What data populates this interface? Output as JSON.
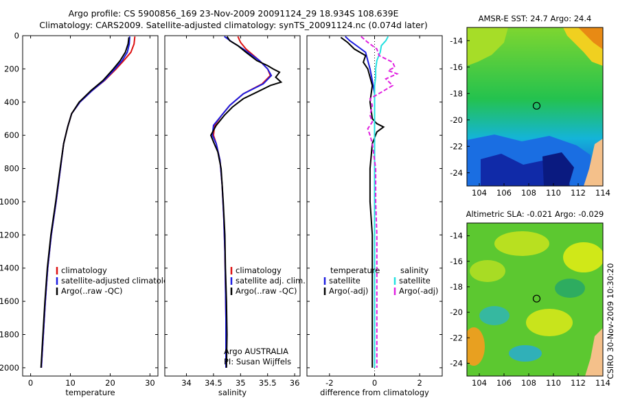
{
  "header": {
    "line1": "Argo profile: CS 5900856_169 23-Nov-2009 20091124_29 18.934S 108.639E",
    "line2": "Climatology: CARS2009. Satellite-adjusted climatology: synTS_20091124.nc (0.074d later)"
  },
  "side_stamp": "CSIRO 30-Nov-2009 10:30:20",
  "colors": {
    "red": "#dd1111",
    "blue": "#1c1ce0",
    "black": "#000000",
    "cyan": "#22e0e0",
    "magenta": "#e020e0"
  },
  "depth_axis": {
    "ylim": [
      0,
      2050
    ],
    "ticks": [
      0,
      200,
      400,
      600,
      800,
      1000,
      1200,
      1400,
      1600,
      1800,
      2000
    ],
    "tick_labels": [
      "0",
      "200",
      "400",
      "600",
      "800",
      "1000",
      "1200",
      "1400",
      "1600",
      "1800",
      "2000"
    ]
  },
  "chart_data": [
    {
      "type": "line",
      "id": "temperature",
      "xlabel": "temperature",
      "xlim": [
        -2,
        32
      ],
      "xticks": [
        0,
        10,
        20,
        30
      ],
      "xtick_labels": [
        "0",
        "10",
        "20",
        "30"
      ],
      "legend": {
        "placement": "lower-right",
        "entries": [
          {
            "label": "climatology",
            "color": "red"
          },
          {
            "label": "satellite-adjusted climatology",
            "color": "blue"
          },
          {
            "label": "Argo(..raw -QC)",
            "color": "black"
          }
        ]
      },
      "series": [
        {
          "name": "climatology",
          "color": "red",
          "points": [
            [
              26.2,
              5
            ],
            [
              26.0,
              50
            ],
            [
              25.2,
              100
            ],
            [
              23.4,
              150
            ],
            [
              21.5,
              200
            ],
            [
              18.6,
              270
            ],
            [
              15.5,
              330
            ],
            [
              12.4,
              400
            ],
            [
              10.3,
              470
            ],
            [
              9.3,
              550
            ],
            [
              8.3,
              650
            ],
            [
              7.5,
              800
            ],
            [
              6.4,
              1000
            ],
            [
              5.2,
              1200
            ],
            [
              4.3,
              1400
            ],
            [
              3.7,
              1600
            ],
            [
              3.2,
              1800
            ],
            [
              2.7,
              2000
            ]
          ]
        },
        {
          "name": "satellite-adjusted climatology",
          "color": "blue",
          "points": [
            [
              24.9,
              5
            ],
            [
              24.8,
              50
            ],
            [
              24.3,
              100
            ],
            [
              23.0,
              150
            ],
            [
              21.2,
              200
            ],
            [
              18.5,
              270
            ],
            [
              15.5,
              330
            ],
            [
              12.4,
              400
            ],
            [
              10.3,
              470
            ],
            [
              9.3,
              550
            ],
            [
              8.3,
              650
            ],
            [
              7.5,
              800
            ],
            [
              6.4,
              1000
            ],
            [
              5.2,
              1200
            ],
            [
              4.3,
              1400
            ],
            [
              3.7,
              1600
            ],
            [
              3.2,
              1800
            ],
            [
              2.7,
              2000
            ]
          ]
        },
        {
          "name": "Argo(..raw -QC)",
          "color": "black",
          "points": [
            [
              24.7,
              10
            ],
            [
              24.5,
              50
            ],
            [
              23.8,
              100
            ],
            [
              22.5,
              150
            ],
            [
              20.8,
              200
            ],
            [
              18.2,
              270
            ],
            [
              15.2,
              330
            ],
            [
              12.2,
              400
            ],
            [
              10.3,
              470
            ],
            [
              9.3,
              550
            ],
            [
              8.3,
              650
            ],
            [
              7.4,
              800
            ],
            [
              6.3,
              1000
            ],
            [
              5.1,
              1200
            ],
            [
              4.2,
              1400
            ],
            [
              3.6,
              1600
            ],
            [
              3.1,
              1800
            ],
            [
              2.6,
              2000
            ]
          ]
        }
      ]
    },
    {
      "type": "line",
      "id": "salinity",
      "xlabel": "salinity",
      "xlim": [
        33.6,
        36.1
      ],
      "xticks": [
        34,
        34.5,
        35,
        35.5,
        36
      ],
      "xtick_labels": [
        "34",
        "34.5",
        "35",
        "35.5",
        "36"
      ],
      "legend": {
        "placement": "right",
        "entries": [
          {
            "label": "climatology",
            "color": "red"
          },
          {
            "label": "satellite adj. clim.",
            "color": "blue"
          },
          {
            "label": "Argo(..raw -QC)",
            "color": "black"
          }
        ]
      },
      "annotations": [
        "Argo AUSTRALIA",
        "PI: Susan Wijffels"
      ],
      "series": [
        {
          "name": "climatology",
          "color": "red",
          "points": [
            [
              34.95,
              5
            ],
            [
              35.0,
              40
            ],
            [
              35.1,
              80
            ],
            [
              35.35,
              150
            ],
            [
              35.5,
              200
            ],
            [
              35.55,
              240
            ],
            [
              35.4,
              290
            ],
            [
              35.05,
              350
            ],
            [
              34.8,
              420
            ],
            [
              34.65,
              480
            ],
            [
              34.52,
              540
            ],
            [
              34.5,
              600
            ],
            [
              34.55,
              650
            ],
            [
              34.62,
              750
            ],
            [
              34.66,
              900
            ],
            [
              34.69,
              1100
            ],
            [
              34.71,
              1300
            ],
            [
              34.72,
              1500
            ],
            [
              34.73,
              1700
            ],
            [
              34.73,
              1900
            ],
            [
              34.73,
              2000
            ]
          ]
        },
        {
          "name": "satellite adj. clim.",
          "color": "blue",
          "points": [
            [
              34.7,
              5
            ],
            [
              34.85,
              40
            ],
            [
              35.05,
              80
            ],
            [
              35.35,
              150
            ],
            [
              35.5,
              200
            ],
            [
              35.57,
              240
            ],
            [
              35.42,
              290
            ],
            [
              35.05,
              350
            ],
            [
              34.8,
              420
            ],
            [
              34.65,
              480
            ],
            [
              34.5,
              540
            ],
            [
              34.48,
              600
            ],
            [
              34.55,
              650
            ],
            [
              34.62,
              750
            ],
            [
              34.66,
              900
            ],
            [
              34.69,
              1100
            ],
            [
              34.71,
              1300
            ],
            [
              34.72,
              1500
            ],
            [
              34.73,
              1700
            ],
            [
              34.73,
              1900
            ],
            [
              34.73,
              2000
            ]
          ]
        },
        {
          "name": "Argo(..raw -QC)",
          "color": "black",
          "points": [
            [
              34.75,
              5
            ],
            [
              34.8,
              30
            ],
            [
              34.95,
              60
            ],
            [
              35.1,
              100
            ],
            [
              35.3,
              150
            ],
            [
              35.5,
              180
            ],
            [
              35.6,
              200
            ],
            [
              35.72,
              220
            ],
            [
              35.65,
              250
            ],
            [
              35.75,
              280
            ],
            [
              35.55,
              300
            ],
            [
              35.3,
              340
            ],
            [
              35.05,
              380
            ],
            [
              34.85,
              430
            ],
            [
              34.7,
              480
            ],
            [
              34.55,
              540
            ],
            [
              34.45,
              600
            ],
            [
              34.5,
              640
            ],
            [
              34.58,
              700
            ],
            [
              34.64,
              800
            ],
            [
              34.68,
              1000
            ],
            [
              34.71,
              1200
            ],
            [
              34.72,
              1400
            ],
            [
              34.74,
              1600
            ],
            [
              34.75,
              1800
            ],
            [
              34.74,
              2000
            ]
          ]
        }
      ]
    },
    {
      "type": "line",
      "id": "difference",
      "xlabel": "difference from climatology",
      "xlim": [
        -3,
        3
      ],
      "xticks": [
        -2,
        0,
        2
      ],
      "xtick_labels": [
        "-2",
        "0",
        "2"
      ],
      "legend": {
        "placement": "lower-center",
        "columns": [
          {
            "heading": "temperature",
            "entries": [
              {
                "label": "satellite",
                "color": "blue"
              },
              {
                "label": "Argo(-adj)",
                "color": "black"
              }
            ]
          },
          {
            "heading": "salinity",
            "entries": [
              {
                "label": "satellite",
                "color": "cyan"
              },
              {
                "label": "Argo(-adj)",
                "color": "magenta"
              }
            ]
          }
        ]
      },
      "series": [
        {
          "name": "temperature satellite",
          "color": "blue",
          "points": [
            [
              -1.3,
              5
            ],
            [
              -1.1,
              30
            ],
            [
              -0.8,
              60
            ],
            [
              -0.4,
              100
            ],
            [
              -0.3,
              150
            ],
            [
              -0.2,
              200
            ],
            [
              -0.1,
              270
            ],
            [
              0,
              350
            ],
            [
              0,
              2000
            ]
          ]
        },
        {
          "name": "temperature Argo(-adj)",
          "color": "black",
          "points": [
            [
              -1.5,
              10
            ],
            [
              -1.2,
              40
            ],
            [
              -0.9,
              80
            ],
            [
              -0.4,
              120
            ],
            [
              -0.5,
              160
            ],
            [
              -0.3,
              200
            ],
            [
              -0.2,
              250
            ],
            [
              -0.1,
              300
            ],
            [
              -0.2,
              400
            ],
            [
              -0.1,
              500
            ],
            [
              0.1,
              530
            ],
            [
              0.4,
              550
            ],
            [
              0.1,
              580
            ],
            [
              -0.1,
              650
            ],
            [
              -0.2,
              800
            ],
            [
              -0.2,
              1000
            ],
            [
              -0.1,
              1200
            ],
            [
              -0.1,
              1400
            ],
            [
              -0.1,
              1600
            ],
            [
              -0.1,
              1800
            ],
            [
              -0.1,
              2000
            ]
          ]
        },
        {
          "name": "salinity satellite",
          "color": "cyan",
          "points": [
            [
              0.6,
              5
            ],
            [
              0.5,
              30
            ],
            [
              0.3,
              60
            ],
            [
              0.25,
              100
            ],
            [
              0.1,
              150
            ],
            [
              0.05,
              200
            ],
            [
              0.05,
              250
            ],
            [
              0,
              300
            ],
            [
              0,
              2000
            ]
          ]
        },
        {
          "name": "salinity Argo(-adj)",
          "color": "magenta",
          "points": [
            [
              -0.6,
              5
            ],
            [
              -0.3,
              40
            ],
            [
              0.1,
              80
            ],
            [
              0.2,
              120
            ],
            [
              0.8,
              160
            ],
            [
              0.9,
              190
            ],
            [
              0.6,
              210
            ],
            [
              1.0,
              230
            ],
            [
              0.5,
              260
            ],
            [
              0.8,
              300
            ],
            [
              0.3,
              340
            ],
            [
              -0.2,
              380
            ],
            [
              -0.1,
              420
            ],
            [
              -0.2,
              480
            ],
            [
              -0.1,
              520
            ],
            [
              -0.3,
              560
            ],
            [
              -0.2,
              600
            ],
            [
              -0.1,
              650
            ],
            [
              0.05,
              800
            ],
            [
              0.05,
              1000
            ],
            [
              0.1,
              1200
            ],
            [
              0.1,
              1400
            ],
            [
              0.1,
              1600
            ],
            [
              0.1,
              1800
            ],
            [
              0.1,
              2000
            ]
          ]
        }
      ]
    },
    {
      "type": "heatmap",
      "id": "sst_map",
      "title": "AMSR-E SST: 24.7 Argo: 24.4",
      "xlim": [
        103,
        114
      ],
      "ylim": [
        -25,
        -13
      ],
      "xticks": [
        104,
        106,
        108,
        110,
        112,
        114
      ],
      "xtick_labels": [
        "104",
        "106",
        "108",
        "110",
        "112",
        "114"
      ],
      "yticks": [
        -14,
        -16,
        -18,
        -20,
        -22,
        -24
      ],
      "ytick_labels": [
        "-14",
        "-16",
        "-18",
        "-20",
        "-22",
        "-24"
      ],
      "marker": {
        "lon": 108.64,
        "lat": -18.93
      }
    },
    {
      "type": "heatmap",
      "id": "sla_map",
      "title": "Altimetric SLA: -0.021 Argo: -0.029",
      "xlim": [
        103,
        114
      ],
      "ylim": [
        -25,
        -13
      ],
      "xticks": [
        104,
        106,
        108,
        110,
        112,
        114
      ],
      "xtick_labels": [
        "104",
        "106",
        "108",
        "110",
        "112",
        "114"
      ],
      "yticks": [
        -14,
        -16,
        -18,
        -20,
        -22,
        -24
      ],
      "ytick_labels": [
        "-14",
        "-16",
        "-18",
        "-20",
        "-22",
        "-24"
      ],
      "marker": {
        "lon": 108.64,
        "lat": -18.93
      }
    }
  ]
}
